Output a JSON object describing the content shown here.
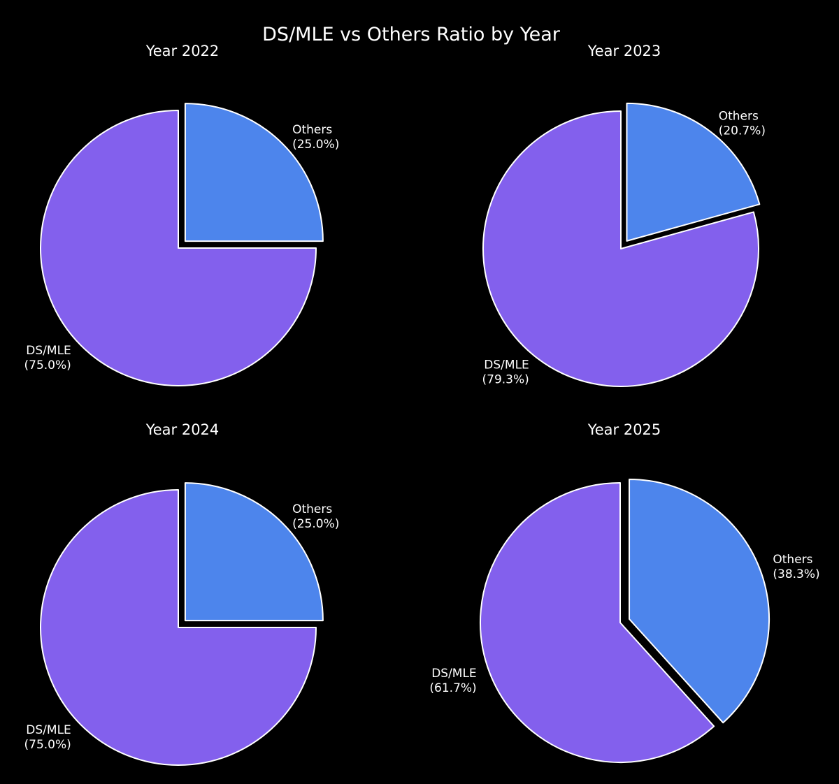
{
  "chart_data": {
    "type": "pie",
    "title": "DS/MLE vs Others Ratio by Year",
    "charts": [
      {
        "title": "Year 2022",
        "slices": [
          {
            "label": "DS/MLE",
            "value": 75.0,
            "pct_label": "(75.0%)",
            "color": "#8360ED",
            "exploded": false
          },
          {
            "label": "Others",
            "value": 25.0,
            "pct_label": "(25.0%)",
            "color": "#4D85EC",
            "exploded": true
          }
        ]
      },
      {
        "title": "Year 2023",
        "slices": [
          {
            "label": "DS/MLE",
            "value": 79.3,
            "pct_label": "(79.3%)",
            "color": "#8360ED",
            "exploded": false
          },
          {
            "label": "Others",
            "value": 20.7,
            "pct_label": "(20.7%)",
            "color": "#4D85EC",
            "exploded": true
          }
        ]
      },
      {
        "title": "Year 2024",
        "slices": [
          {
            "label": "DS/MLE",
            "value": 75.0,
            "pct_label": "(75.0%)",
            "color": "#8360ED",
            "exploded": false
          },
          {
            "label": "Others",
            "value": 25.0,
            "pct_label": "(25.0%)",
            "color": "#4D85EC",
            "exploded": true
          }
        ]
      },
      {
        "title": "Year 2025",
        "slices": [
          {
            "label": "DS/MLE",
            "value": 61.7,
            "pct_label": "(61.7%)",
            "color": "#8360ED",
            "exploded": false
          },
          {
            "label": "Others",
            "value": 38.3,
            "pct_label": "(38.3%)",
            "color": "#4D85EC",
            "exploded": true
          }
        ]
      }
    ],
    "colors": {
      "background": "#000000",
      "text": "#FFFFFF",
      "edge": "#FFFFFF"
    }
  }
}
